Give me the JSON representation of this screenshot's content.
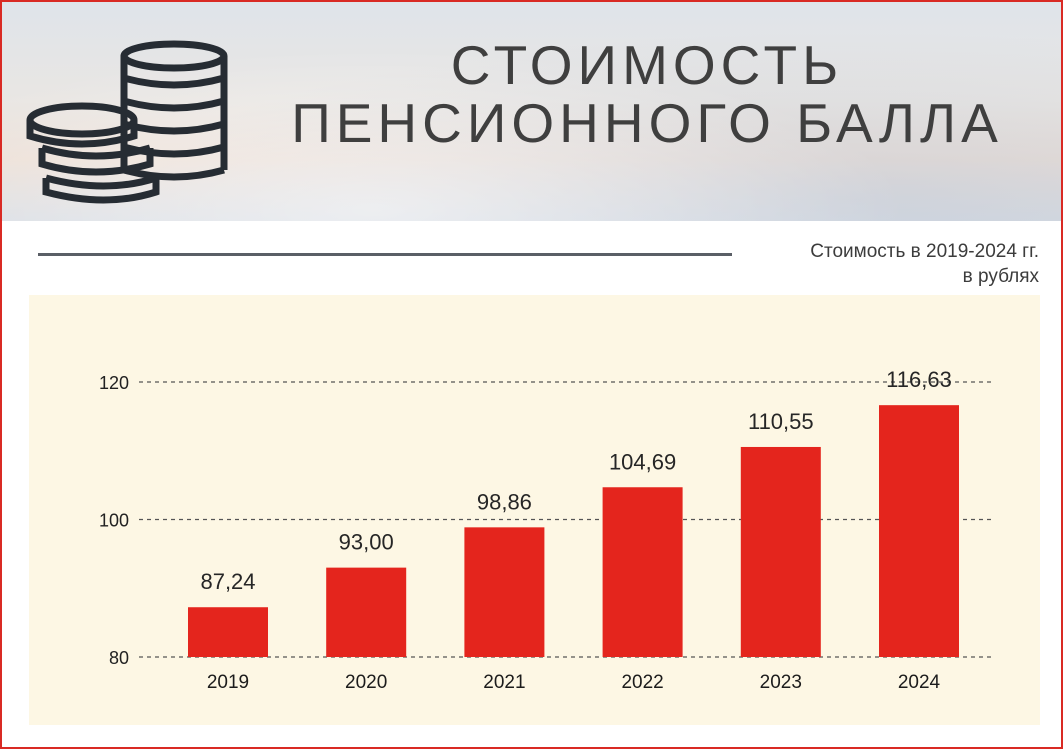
{
  "header": {
    "title_line1": "СТОИМОСТЬ",
    "title_line2": "ПЕНСИОННОГО БАЛЛА",
    "icon": "coins-stack-icon"
  },
  "subtitle": {
    "line1": "Стоимость  в 2019-2024 гг.",
    "line2": "в рублях"
  },
  "colors": {
    "bar": "#e4251d",
    "panel": "#fdf7e4",
    "border": "#d92a24"
  },
  "chart_data": {
    "type": "bar",
    "categories": [
      "2019",
      "2020",
      "2021",
      "2022",
      "2023",
      "2024"
    ],
    "values": [
      87.24,
      93.0,
      98.86,
      104.69,
      110.55,
      116.63
    ],
    "value_labels": [
      "87,24",
      "93,00",
      "98,86",
      "104,69",
      "110,55",
      "116,63"
    ],
    "title": "СТОИМОСТЬ ПЕНСИОННОГО БАЛЛА",
    "xlabel": "",
    "ylabel": "",
    "ylim": [
      80,
      120
    ],
    "yticks": [
      80,
      100,
      120
    ],
    "grid": "dashed horizontal at ticks",
    "legend": "none"
  }
}
